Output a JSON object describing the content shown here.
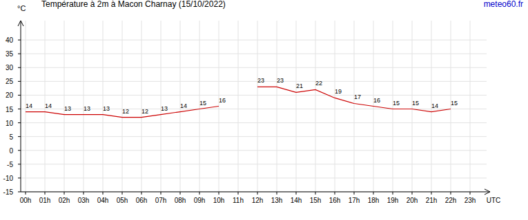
{
  "chart_data": {
    "type": "line",
    "title": "Température à 2m à Macon Charnay (15/10/2022)",
    "source": "meteo60.fr",
    "y_label": "°C",
    "x_label": "UTC",
    "categories": [
      "00h",
      "01h",
      "02h",
      "03h",
      "04h",
      "05h",
      "06h",
      "07h",
      "08h",
      "09h",
      "10h",
      "11h",
      "12h",
      "13h",
      "14h",
      "15h",
      "16h",
      "17h",
      "18h",
      "19h",
      "20h",
      "21h",
      "22h",
      "23h"
    ],
    "values": [
      14,
      14,
      13,
      13,
      13,
      12,
      12,
      13,
      14,
      15,
      16,
      null,
      23,
      23,
      21,
      22,
      19,
      17,
      16,
      15,
      15,
      14,
      15,
      null
    ],
    "color": "#cc0000",
    "ylim": [
      -15,
      47
    ],
    "yticks": [
      -15,
      -10,
      -5,
      0,
      5,
      10,
      15,
      20,
      25,
      30,
      35,
      40
    ],
    "grid": true,
    "data_labels": true
  }
}
